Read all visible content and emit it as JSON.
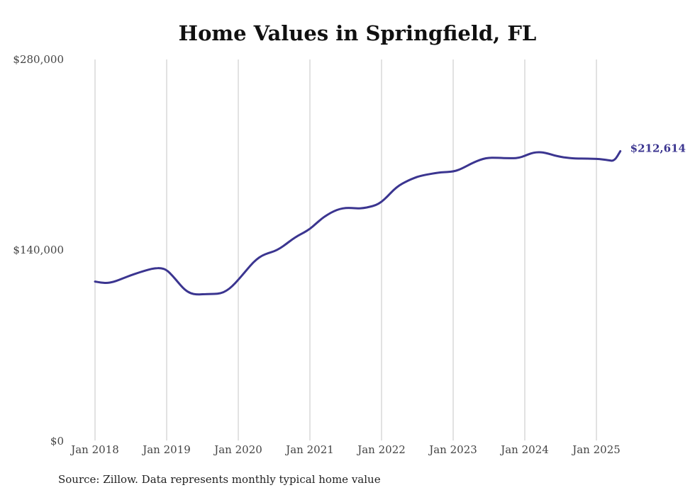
{
  "title": "Home Values in Springfield, FL",
  "source": "Source: Zillow. Data represents monthly typical home value",
  "chart_data": {
    "type": "line",
    "title": "Home Values in Springfield, FL",
    "xlabel": "",
    "ylabel": "",
    "ylim": [
      0,
      280000
    ],
    "y_ticks": [
      "$280,000",
      "$140,000",
      "$0"
    ],
    "y_tick_values": [
      280000,
      140000,
      0
    ],
    "x_ticks": [
      "Jan 2018",
      "Jan 2019",
      "Jan 2020",
      "Jan 2021",
      "Jan 2022",
      "Jan 2023",
      "Jan 2024",
      "Jan 2025"
    ],
    "grid": "vertical",
    "line_color": "#3b3590",
    "end_label": "$212,614",
    "series": [
      {
        "x": [
          "2018-01",
          "2018-02",
          "2018-03",
          "2018-04",
          "2018-05",
          "2018-06",
          "2018-07",
          "2018-08",
          "2018-09",
          "2018-10",
          "2018-11",
          "2018-12",
          "2019-01",
          "2019-02",
          "2019-03",
          "2019-04",
          "2019-05",
          "2019-06",
          "2019-07",
          "2019-08",
          "2019-09",
          "2019-10",
          "2019-11",
          "2019-12",
          "2020-01",
          "2020-02",
          "2020-03",
          "2020-04",
          "2020-05",
          "2020-06",
          "2020-07",
          "2020-08",
          "2020-09",
          "2020-10",
          "2020-11",
          "2020-12",
          "2021-01",
          "2021-02",
          "2021-03",
          "2021-04",
          "2021-05",
          "2021-06",
          "2021-07",
          "2021-08",
          "2021-09",
          "2021-10",
          "2021-11",
          "2021-12",
          "2022-01",
          "2022-02",
          "2022-03",
          "2022-04",
          "2022-05",
          "2022-06",
          "2022-07",
          "2022-08",
          "2022-09",
          "2022-10",
          "2022-11",
          "2022-12",
          "2023-01",
          "2023-02",
          "2023-03",
          "2023-04",
          "2023-05",
          "2023-06",
          "2023-07",
          "2023-08",
          "2023-09",
          "2023-10",
          "2023-11",
          "2023-12",
          "2024-01",
          "2024-02",
          "2024-03",
          "2024-04",
          "2024-05",
          "2024-06",
          "2024-07",
          "2024-08",
          "2024-09",
          "2024-10",
          "2024-11",
          "2024-12",
          "2025-01",
          "2025-02",
          "2025-03",
          "2025-04",
          "2025-05"
        ],
        "values": [
          116800,
          116000,
          115700,
          116400,
          118000,
          119700,
          121400,
          122900,
          124300,
          125600,
          126600,
          126800,
          125400,
          121000,
          115800,
          110800,
          108100,
          107300,
          107400,
          107700,
          107700,
          108100,
          109900,
          113400,
          118100,
          123200,
          128400,
          133000,
          136000,
          137700,
          139000,
          141200,
          144300,
          147700,
          150500,
          152800,
          155500,
          159300,
          163100,
          166100,
          168500,
          170200,
          170900,
          170900,
          170500,
          170800,
          171700,
          172800,
          175300,
          179400,
          184100,
          187600,
          190000,
          192100,
          193800,
          194900,
          195700,
          196500,
          197100,
          197300,
          197700,
          198900,
          201100,
          203400,
          205400,
          207000,
          207800,
          207800,
          207600,
          207500,
          207400,
          207700,
          209200,
          211000,
          211900,
          211700,
          210800,
          209400,
          208500,
          207800,
          207400,
          207200,
          207200,
          207100,
          207000,
          206600,
          206000,
          205300,
          212614
        ]
      }
    ]
  }
}
